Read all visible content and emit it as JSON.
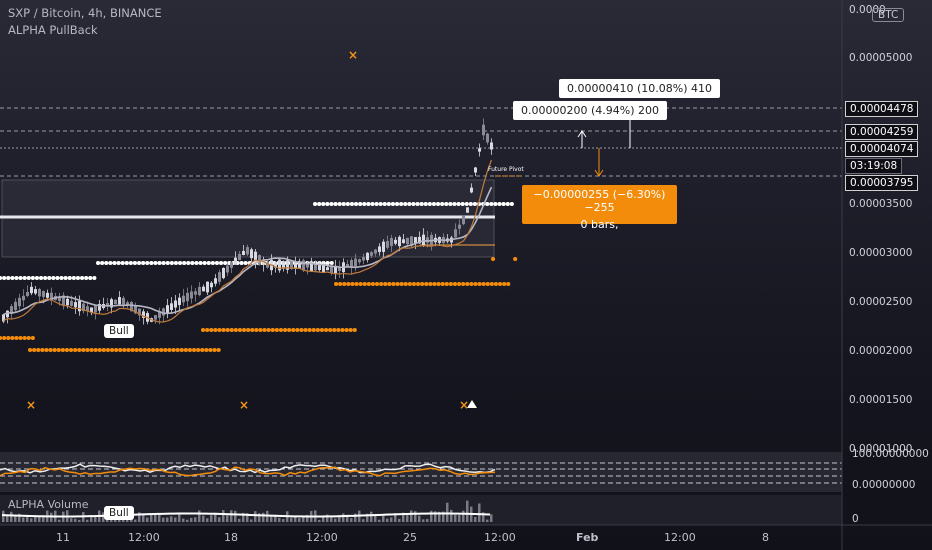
{
  "header": {
    "symbol_line": "SXP / Bitcoin, 4h, BINANCE",
    "indicator_name": "ALPHA PullBack",
    "currency_badge": "BTC"
  },
  "price_axis": {
    "top_partial": "0.0000",
    "labels": [
      "0.00005000",
      "0.00003500",
      "0.00003000",
      "0.00002500",
      "0.00002000",
      "0.00001500",
      "0.00001000"
    ],
    "boxed": [
      "0.00004478",
      "0.00004259",
      "0.00004074",
      "03:19:08",
      "0.00003795"
    ],
    "osc_labels": [
      "100.00000000",
      "0.00000000"
    ],
    "vol_label": "0"
  },
  "measure_tooltips": {
    "upper": "0.00000410 (10.08%) 410",
    "middle": "0.00000200 (4.94%) 200",
    "lower_line1": "−0.00000255 (−6.30%) −255",
    "lower_line2": "0 bars,"
  },
  "annotations": {
    "bull_main": "Bull",
    "bull_volume": "Bull",
    "future_pivot": "Future Pivot"
  },
  "volume_panel": {
    "title": "ALPHA Volume"
  },
  "time_axis": [
    "11",
    "12:00",
    "18",
    "12:00",
    "25",
    "12:00",
    "Feb",
    "12:00",
    "8"
  ],
  "colors": {
    "background": "#1e1e2a",
    "orange": "#f28c0a",
    "white_dots": "#ffffff",
    "grid_dash": "#9a9aa8"
  }
}
